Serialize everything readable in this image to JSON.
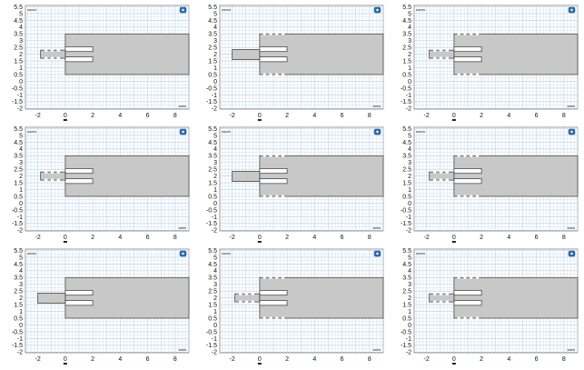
{
  "figure": {
    "y_ticks": [
      "5.5",
      "5",
      "4.5",
      "4",
      "3.5",
      "3",
      "2.5",
      "2",
      "1.5",
      "1",
      "0.5",
      "0",
      "-0.5",
      "-1",
      "-1.5",
      "-2"
    ],
    "x_ticks": [
      "-2",
      "0",
      "2",
      "4",
      "6",
      "8"
    ],
    "x_range": [
      -2.9,
      9.0
    ],
    "y_range": [
      -2.05,
      5.6
    ],
    "grid_minor_step": 0.25,
    "grid_color_minor": "#d7e6f4",
    "grid_color_major": "#b8cfe6",
    "shape_fill": "#c8c8c8",
    "shape_stroke": "#4a4a4a",
    "panel_icon": "info-badge-icon",
    "panel_small_label_topleft": "zoom",
    "panel_small_label_bottomright": "axes"
  },
  "panels": [
    {
      "id": 1,
      "variant": "stub-left-notched-top-bottom-slots"
    },
    {
      "id": 2,
      "variant": "plain-stub-top-bottom-notched-slots"
    },
    {
      "id": 3,
      "variant": "notched-stub-notched-body"
    },
    {
      "id": 4,
      "variant": "stub-left-notched"
    },
    {
      "id": 5,
      "variant": "plain-stub-notched-slots"
    },
    {
      "id": 6,
      "variant": "notched-stub-notched-body"
    },
    {
      "id": 7,
      "variant": "plain-stub-slots"
    },
    {
      "id": 8,
      "variant": "notched-stub-notched-body"
    },
    {
      "id": 9,
      "variant": "notched-stub-notched-body"
    }
  ]
}
